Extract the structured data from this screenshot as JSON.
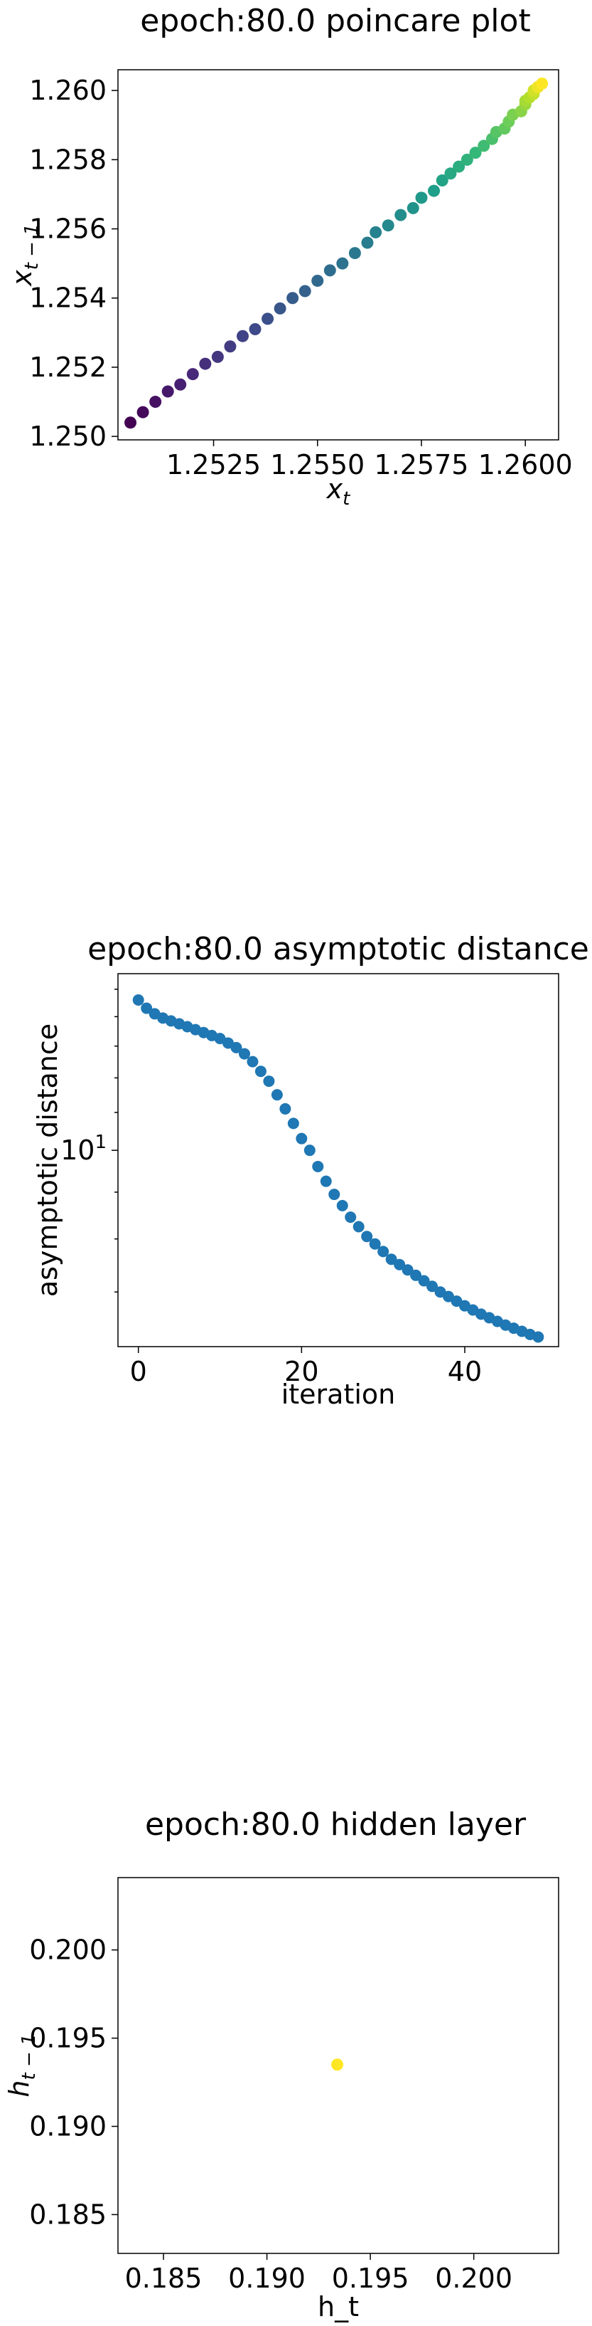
{
  "chart_data": [
    {
      "type": "scatter",
      "title": "epoch:80.0 poincare plot",
      "xlabel_main": "x",
      "xlabel_sub": "t",
      "ylabel_main": "x",
      "ylabel_sub": "t − 1",
      "xlim": [
        1.2502,
        1.2608
      ],
      "ylim": [
        1.2499,
        1.2606
      ],
      "xticks": [
        {
          "v": 1.2525,
          "label": "1.2525"
        },
        {
          "v": 1.255,
          "label": "1.2550"
        },
        {
          "v": 1.2575,
          "label": "1.2575"
        },
        {
          "v": 1.26,
          "label": "1.2600"
        }
      ],
      "yticks": [
        {
          "v": 1.25,
          "label": "1.250"
        },
        {
          "v": 1.252,
          "label": "1.252"
        },
        {
          "v": 1.254,
          "label": "1.254"
        },
        {
          "v": 1.256,
          "label": "1.256"
        },
        {
          "v": 1.258,
          "label": "1.258"
        },
        {
          "v": 1.26,
          "label": "1.260"
        }
      ],
      "colormap": "viridis",
      "points": [
        [
          1.2505,
          1.2504
        ],
        [
          1.2508,
          1.2507
        ],
        [
          1.2511,
          1.251
        ],
        [
          1.2514,
          1.2513
        ],
        [
          1.2517,
          1.2515
        ],
        [
          1.252,
          1.2518
        ],
        [
          1.2523,
          1.2521
        ],
        [
          1.2526,
          1.2523
        ],
        [
          1.2529,
          1.2526
        ],
        [
          1.2532,
          1.2529
        ],
        [
          1.2535,
          1.2531
        ],
        [
          1.2538,
          1.2534
        ],
        [
          1.2541,
          1.2537
        ],
        [
          1.2544,
          1.254
        ],
        [
          1.2547,
          1.2542
        ],
        [
          1.255,
          1.2545
        ],
        [
          1.2553,
          1.2548
        ],
        [
          1.2556,
          1.255
        ],
        [
          1.2559,
          1.2553
        ],
        [
          1.2562,
          1.2556
        ],
        [
          1.2564,
          1.2559
        ],
        [
          1.2567,
          1.2561
        ],
        [
          1.257,
          1.2564
        ],
        [
          1.2573,
          1.2566
        ],
        [
          1.2575,
          1.2569
        ],
        [
          1.2578,
          1.2571
        ],
        [
          1.258,
          1.2574
        ],
        [
          1.2582,
          1.2576
        ],
        [
          1.2584,
          1.2578
        ],
        [
          1.2586,
          1.258
        ],
        [
          1.2588,
          1.2582
        ],
        [
          1.259,
          1.2584
        ],
        [
          1.2592,
          1.2586
        ],
        [
          1.2593,
          1.2588
        ],
        [
          1.2595,
          1.2589
        ],
        [
          1.2596,
          1.2591
        ],
        [
          1.2597,
          1.2593
        ],
        [
          1.2599,
          1.2594
        ],
        [
          1.26,
          1.2596
        ],
        [
          1.26,
          1.2597
        ],
        [
          1.2601,
          1.2598
        ],
        [
          1.2602,
          1.2599
        ],
        [
          1.2602,
          1.26
        ],
        [
          1.2603,
          1.2601
        ],
        [
          1.2603,
          1.2601
        ],
        [
          1.2604,
          1.2602
        ]
      ]
    },
    {
      "type": "scatter",
      "title": "epoch:80.0 asymptotic distance",
      "xlabel": "iteration",
      "ylabel": "asymptotic distance",
      "yscale": "log",
      "xlim": [
        -2.5,
        51.5
      ],
      "ylim": [
        6.1,
        15.6
      ],
      "xticks": [
        {
          "v": 0,
          "label": "0"
        },
        {
          "v": 20,
          "label": "20"
        },
        {
          "v": 40,
          "label": "40"
        }
      ],
      "yticks": [
        {
          "v": 10,
          "label": "10¹"
        }
      ],
      "color": "#1f77b4",
      "x": [
        0,
        1,
        2,
        3,
        4,
        5,
        6,
        7,
        8,
        9,
        10,
        11,
        12,
        13,
        14,
        15,
        16,
        17,
        18,
        19,
        20,
        21,
        22,
        23,
        24,
        25,
        26,
        27,
        28,
        29,
        30,
        31,
        32,
        33,
        34,
        35,
        36,
        37,
        38,
        39,
        40,
        41,
        42,
        43,
        44,
        45,
        46,
        47,
        48,
        49
      ],
      "y": [
        14.6,
        14.3,
        14.1,
        13.95,
        13.85,
        13.75,
        13.65,
        13.55,
        13.45,
        13.35,
        13.25,
        13.1,
        12.95,
        12.75,
        12.5,
        12.2,
        11.9,
        11.5,
        11.1,
        10.7,
        10.3,
        10.0,
        9.6,
        9.25,
        8.95,
        8.7,
        8.45,
        8.25,
        8.05,
        7.9,
        7.75,
        7.6,
        7.5,
        7.4,
        7.3,
        7.2,
        7.1,
        7.0,
        6.92,
        6.84,
        6.76,
        6.69,
        6.62,
        6.56,
        6.5,
        6.44,
        6.39,
        6.34,
        6.29,
        6.25
      ]
    },
    {
      "type": "scatter",
      "title": "epoch:80.0 hidden layer",
      "xlabel": "h_t",
      "ylabel_main": "h",
      "ylabel_sub": "t − 1",
      "xlim": [
        0.1828,
        0.2041
      ],
      "ylim": [
        0.1828,
        0.2041
      ],
      "xticks": [
        {
          "v": 0.185,
          "label": "0.185"
        },
        {
          "v": 0.19,
          "label": "0.190"
        },
        {
          "v": 0.195,
          "label": "0.195"
        },
        {
          "v": 0.2,
          "label": "0.200"
        }
      ],
      "yticks": [
        {
          "v": 0.185,
          "label": "0.185"
        },
        {
          "v": 0.19,
          "label": "0.190"
        },
        {
          "v": 0.195,
          "label": "0.195"
        },
        {
          "v": 0.2,
          "label": "0.200"
        }
      ],
      "color": "#fde725",
      "points": [
        [
          0.1934,
          0.1935
        ]
      ]
    }
  ]
}
